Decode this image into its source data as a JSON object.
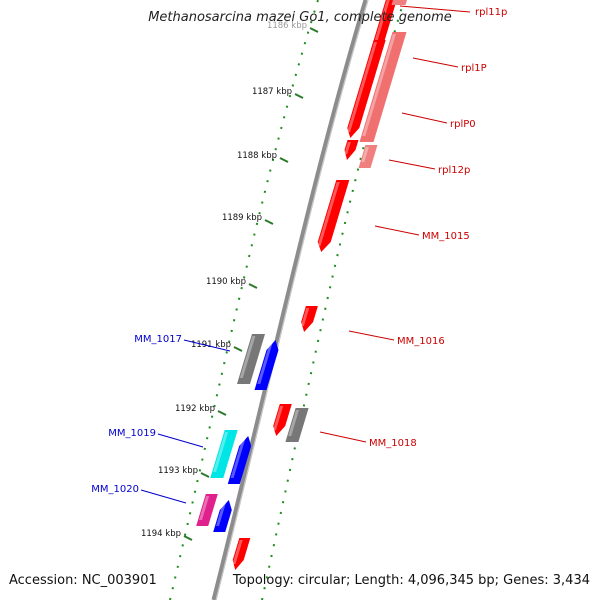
{
  "title": "Methanosarcina mazei Go1, complete genome",
  "footer": {
    "accession": "Accession: NC_003901",
    "summary": "Topology: circular; Length: 4,096,345 bp; Genes: 3,434"
  },
  "ticks": [
    {
      "label": "1186 kbp"
    },
    {
      "label": "1187 kbp"
    },
    {
      "label": "1188 kbp"
    },
    {
      "label": "1189 kbp"
    },
    {
      "label": "1190 kbp"
    },
    {
      "label": "1191 kbp"
    },
    {
      "label": "1192 kbp"
    },
    {
      "label": "1193 kbp"
    },
    {
      "label": "1194 kbp"
    }
  ],
  "gene_labels": [
    {
      "name": "rpl11p",
      "color": "#cc0000"
    },
    {
      "name": "rpl1P",
      "color": "#cc0000"
    },
    {
      "name": "rplP0",
      "color": "#cc0000"
    },
    {
      "name": "rpl12p",
      "color": "#cc0000"
    },
    {
      "name": "MM_1015",
      "color": "#cc0000"
    },
    {
      "name": "MM_1016",
      "color": "#cc0000"
    },
    {
      "name": "MM_1018",
      "color": "#cc0000"
    },
    {
      "name": "MM_1017",
      "color": "#0000cc"
    },
    {
      "name": "MM_1019",
      "color": "#0000cc"
    },
    {
      "name": "MM_1020",
      "color": "#0000cc"
    }
  ],
  "colors": {
    "backbone": "#8c8c8c",
    "dots": "#1e8c1e",
    "forward_gene": "#ff0000",
    "reverse_gene": "#0000ff",
    "other_gene": "#777777",
    "cyan_gene": "#00e5e5",
    "magenta_gene": "#e0208c"
  }
}
